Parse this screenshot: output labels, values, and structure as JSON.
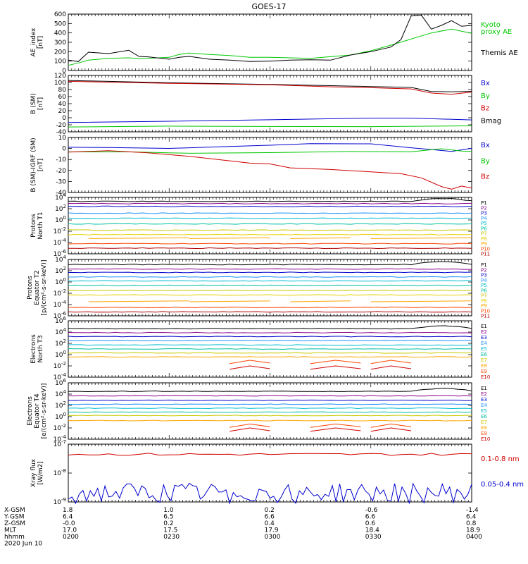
{
  "title": "GOES-17",
  "colors": {
    "black": "#000000",
    "green": "#00c800",
    "red": "#d00000",
    "blue": "#0000d0",
    "P1": "#000000",
    "P2": "#8b008b",
    "P3": "#0000cd",
    "P4": "#1e90ff",
    "P5": "#00bcd4",
    "P6": "#00c0a0",
    "P7": "#c8c800",
    "P8": "#e8d000",
    "P9": "#ffa500",
    "P10": "#ff4500",
    "P11": "#b00000"
  },
  "chart_data": [
    {
      "type": "line",
      "ylabel": [
        "AE_index",
        "[nT]"
      ],
      "ylim": [
        0,
        600
      ],
      "yticks": [
        "600",
        "500",
        "400",
        "300",
        "200",
        "100",
        "0"
      ],
      "ytick_values": [
        600,
        500,
        400,
        300,
        200,
        100,
        0
      ],
      "legend": [
        "Kyoto",
        "proxy AE",
        "Themis AE"
      ],
      "series": [
        {
          "name": "Kyoto",
          "color": "#00c800",
          "x": [
            0,
            0.05,
            0.1,
            0.2,
            0.3,
            0.35,
            0.45,
            0.5,
            0.55,
            0.6,
            0.7,
            0.8,
            0.9,
            1.0,
            1.2,
            1.4,
            1.5,
            1.6,
            1.8,
            1.9,
            2.0
          ],
          "values": [
            55,
            80,
            110,
            130,
            135,
            125,
            135,
            140,
            170,
            185,
            170,
            160,
            140,
            140,
            130,
            165,
            210,
            270,
            400,
            440,
            395
          ]
        },
        {
          "name": "Themis AE",
          "color": "#000000",
          "x": [
            0,
            0.05,
            0.1,
            0.2,
            0.3,
            0.35,
            0.4,
            0.5,
            0.55,
            0.6,
            0.7,
            0.8,
            0.9,
            1.0,
            1.1,
            1.2,
            1.3,
            1.4,
            1.5,
            1.6,
            1.65,
            1.7,
            1.75,
            1.8,
            1.85,
            1.9,
            1.95,
            2.0
          ],
          "values": [
            110,
            95,
            195,
            180,
            215,
            150,
            145,
            120,
            140,
            150,
            120,
            110,
            95,
            100,
            110,
            115,
            110,
            165,
            200,
            250,
            330,
            580,
            590,
            440,
            480,
            530,
            470,
            480
          ]
        }
      ]
    },
    {
      "type": "line",
      "ylabel": [
        "B (SM)",
        "[nT]"
      ],
      "ylim": [
        -40,
        120
      ],
      "yticks": [
        "120",
        "100",
        "80",
        "60",
        "40",
        "20",
        "0",
        "-20",
        "-40"
      ],
      "ytick_values": [
        120,
        100,
        80,
        60,
        40,
        20,
        0,
        -20,
        -40
      ],
      "legend": [
        "Bx",
        "By",
        "Bz",
        "Bmag"
      ],
      "series": [
        {
          "name": "Bmag",
          "color": "#000000",
          "x": [
            0,
            0.5,
            1.0,
            1.3,
            1.5,
            1.7,
            1.8,
            1.9,
            2.0
          ],
          "values": [
            105,
            100,
            95,
            90,
            88,
            85,
            75,
            73,
            75
          ]
        },
        {
          "name": "Bz",
          "color": "#d00000",
          "x": [
            0,
            0.5,
            1.0,
            1.3,
            1.5,
            1.7,
            1.8,
            1.9,
            2.0
          ],
          "values": [
            103,
            98,
            93,
            88,
            86,
            82,
            70,
            66,
            72
          ]
        },
        {
          "name": "Bx",
          "color": "#0000d0",
          "x": [
            0,
            0.5,
            1.0,
            1.5,
            1.7,
            2.0
          ],
          "values": [
            -13,
            -10,
            -5,
            -2,
            -1,
            -5
          ]
        },
        {
          "name": "By",
          "color": "#00c800",
          "x": [
            0,
            0.5,
            1.0,
            1.5,
            2.0
          ],
          "values": [
            -25,
            -24,
            -25,
            -25,
            -24
          ]
        }
      ]
    },
    {
      "type": "line",
      "ylabel": [
        "B (SM)-IGRF (SM)",
        "[nT]"
      ],
      "ylim": [
        -40,
        10
      ],
      "yticks": [
        "10",
        "0",
        "-10",
        "-20",
        "-30",
        "-40"
      ],
      "ytick_values": [
        10,
        0,
        -10,
        -20,
        -30,
        -40
      ],
      "legend": [
        "Bx",
        "By",
        "Bz"
      ],
      "series": [
        {
          "name": "Bx",
          "color": "#0000d0",
          "x": [
            0,
            0.2,
            0.5,
            0.8,
            1.0,
            1.2,
            1.5,
            1.7,
            1.8,
            1.9,
            2.0
          ],
          "values": [
            1,
            1,
            0,
            2,
            3,
            4,
            4,
            1,
            -1,
            -3,
            0
          ]
        },
        {
          "name": "By",
          "color": "#00c800",
          "x": [
            0,
            0.3,
            0.6,
            1.0,
            1.4,
            1.7,
            1.85,
            1.95,
            2.0
          ],
          "values": [
            -3,
            -3,
            -4,
            -4,
            -3,
            -3,
            0,
            -2,
            -3
          ]
        },
        {
          "name": "Bz",
          "color": "#d00000",
          "x": [
            0,
            0.2,
            0.4,
            0.6,
            0.8,
            0.9,
            1.0,
            1.1,
            1.3,
            1.5,
            1.65,
            1.75,
            1.85,
            1.9,
            1.95,
            2.0
          ],
          "values": [
            -3,
            -2,
            -4,
            -7,
            -11,
            -13,
            -14,
            -18,
            -19,
            -21,
            -23,
            -27,
            -35,
            -37,
            -34,
            -36
          ]
        }
      ]
    },
    {
      "type": "line",
      "ylabel": [
        "Protons",
        "North T1"
      ],
      "ylog": [
        -6,
        4
      ],
      "yticks": [
        "10^4",
        "10^2",
        "10^0",
        "10^-2",
        "10^-4",
        "10^-6"
      ],
      "ytick_values": [
        4,
        2,
        0,
        -2,
        -4,
        -6
      ],
      "legend": [
        "P1",
        "P2",
        "P3",
        "P4",
        "P5",
        "P6",
        "P7",
        "P8",
        "P9",
        "P10",
        "P11"
      ],
      "series_log_levels": [
        3.3,
        2.9,
        2.4,
        1.2,
        0.3,
        -0.7,
        -1.8,
        -2.6,
        -3.3,
        -4.2,
        -5.0
      ],
      "series_names": [
        "P1",
        "P2",
        "P3",
        "P4",
        "P5",
        "P6",
        "P7",
        "P8",
        "P9",
        "P10",
        "P11"
      ]
    },
    {
      "type": "line",
      "ylabel": [
        "Protons",
        "Equator T2",
        "[p/(cm²-s-sr-keV)]"
      ],
      "ylog": [
        -6,
        4
      ],
      "yticks": [
        "10^4",
        "10^2",
        "10^0",
        "10^-2",
        "10^-4",
        "10^-6"
      ],
      "ytick_values": [
        4,
        2,
        0,
        -2,
        -4,
        -6
      ],
      "legend": [
        "P1",
        "P2",
        "P3",
        "P4",
        "P5",
        "P6",
        "P7",
        "P8",
        "P9",
        "P10",
        "P11"
      ],
      "series_log_levels": [
        3.1,
        2.3,
        1.7,
        0.9,
        0.2,
        -0.6,
        -1.5,
        -2.3,
        -3.5,
        -4.5,
        -5.3
      ],
      "series_names": [
        "P1",
        "P2",
        "P3",
        "P4",
        "P5",
        "P6",
        "P7",
        "P8",
        "P9",
        "P10",
        "P11"
      ]
    },
    {
      "type": "line",
      "ylabel": [
        "Electrons",
        "North T3"
      ],
      "ylog": [
        -4,
        6
      ],
      "yticks": [
        "10^6",
        "10^4",
        "10^2",
        "10^0",
        "10^-2",
        "10^-4"
      ],
      "ytick_values": [
        6,
        4,
        2,
        0,
        -2,
        -4
      ],
      "legend": [
        "E1",
        "E2",
        "E3",
        "E4",
        "E5",
        "E6",
        "E7",
        "E8",
        "E9",
        "E10"
      ],
      "series_log_levels": [
        4.6,
        3.9,
        3.2,
        2.5,
        1.7,
        1.0,
        0.3,
        -0.4,
        -1.3,
        -2.3
      ],
      "series_names": [
        "E1",
        "E2",
        "E3",
        "E4",
        "E5",
        "E6",
        "E7",
        "E8",
        "E9",
        "E10"
      ]
    },
    {
      "type": "line",
      "ylabel": [
        "Electrons",
        "Equator T4",
        "[e/(cm²-s-sr-keV)]"
      ],
      "ylog": [
        -4,
        6
      ],
      "yticks": [
        "10^6",
        "10^4",
        "10^2",
        "10^0",
        "10^-2",
        "10^-4"
      ],
      "ytick_values": [
        6,
        4,
        2,
        0,
        -2,
        -4
      ],
      "legend": [
        "E1",
        "E2",
        "E3",
        "E4",
        "E5",
        "E6",
        "E7",
        "E8",
        "E9",
        "E10"
      ],
      "series_log_levels": [
        4.5,
        3.7,
        2.9,
        2.2,
        1.5,
        0.8,
        0.2,
        -0.7,
        -1.6,
        -2.3
      ],
      "series_names": [
        "E1",
        "E2",
        "E3",
        "E4",
        "E5",
        "E6",
        "E7",
        "E8",
        "E9",
        "E10"
      ]
    },
    {
      "type": "line",
      "ylabel": [
        "Xray flux",
        "[W/m2]"
      ],
      "ylog": [
        -9,
        -7
      ],
      "yticks": [
        "10^-7",
        "10^-8",
        "10^-9"
      ],
      "ytick_values": [
        -7,
        -8,
        -9
      ],
      "legend": [
        "0.1-0.8 nm",
        "0.05-0.4 nm"
      ],
      "series": [
        {
          "name": "0.1-0.8 nm",
          "color": "#d00000",
          "level": -7.35
        },
        {
          "name": "0.05-0.4 nm",
          "color": "#0000d0",
          "level": -8.7
        }
      ]
    }
  ],
  "x_axis": {
    "labels": [
      "0200",
      "0230",
      "0300",
      "0330",
      "0400"
    ],
    "rows": [
      {
        "name": "X-GSM",
        "values": [
          "1.8",
          "1.0",
          "0.2",
          "-0.6",
          "-1.4"
        ]
      },
      {
        "name": "Y-GSM",
        "values": [
          "6.4",
          "6.5",
          "6.6",
          "6.6",
          "6.4"
        ]
      },
      {
        "name": "Z-GSM",
        "values": [
          "-0.0",
          "0.2",
          "0.4",
          "0.6",
          "0.8"
        ]
      },
      {
        "name": "MLT",
        "values": [
          "17.0",
          "17.5",
          "17.9",
          "18.4",
          "18.9"
        ]
      },
      {
        "name": "hhmm",
        "values": [
          "0200",
          "0230",
          "0300",
          "0330",
          "0400"
        ]
      }
    ],
    "date": "2020 Jun 10"
  }
}
